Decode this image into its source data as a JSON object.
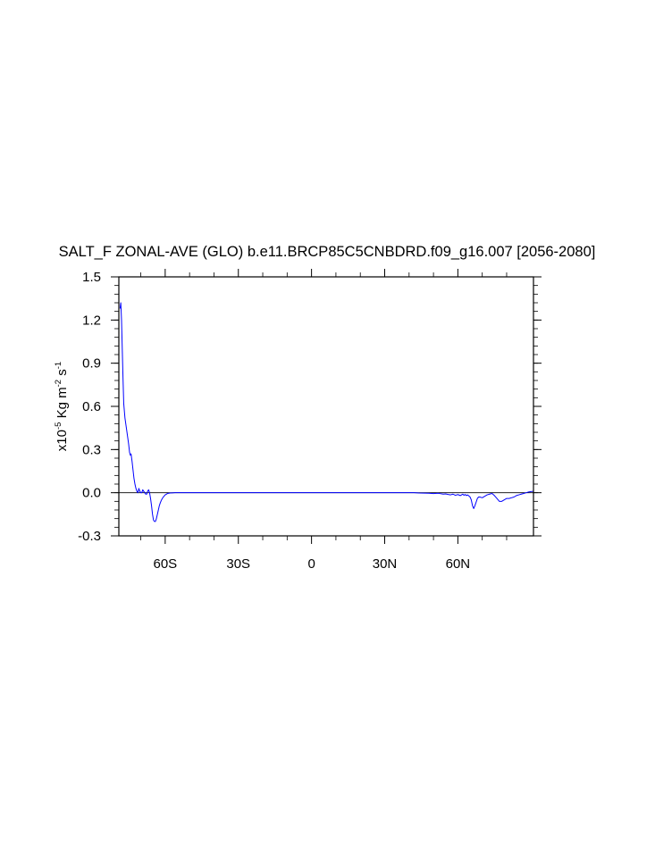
{
  "chart_data": {
    "type": "line",
    "title": "SALT_F ZONAL-AVE (GLO) b.e11.BRCP85C5CNBDRD.f09_g16.007 [2056-2080]",
    "ylabel": {
      "prefix": "x10",
      "exp": "-5",
      "unit1": " Kg m",
      "unit1_exp": "-2",
      "unit2": " s",
      "unit2_exp": "-1"
    },
    "xlim": [
      -79,
      91
    ],
    "ylim": [
      -0.3,
      1.5
    ],
    "x_ticks": [
      {
        "value": -60,
        "label": "60S"
      },
      {
        "value": -30,
        "label": "30S"
      },
      {
        "value": 0,
        "label": "0"
      },
      {
        "value": 30,
        "label": "30N"
      },
      {
        "value": 60,
        "label": "60N"
      }
    ],
    "y_ticks": [
      {
        "value": -0.3,
        "label": "-0.3"
      },
      {
        "value": 0.0,
        "label": "0.0"
      },
      {
        "value": 0.3,
        "label": "0.3"
      },
      {
        "value": 0.6,
        "label": "0.6"
      },
      {
        "value": 0.9,
        "label": "0.9"
      },
      {
        "value": 1.2,
        "label": "1.2"
      },
      {
        "value": 1.5,
        "label": "1.5"
      }
    ],
    "zero_line": true,
    "line_color": "#0000ff",
    "series": [
      {
        "x": [
          -78.5,
          -78.2,
          -77.9,
          -77.6,
          -77.3,
          -77.0,
          -76.5,
          -76.0,
          -75.5,
          -75.0,
          -74.6,
          -74.3,
          -74.0,
          -73.6,
          -73.2,
          -72.8,
          -72.4,
          -72.0,
          -71.6,
          -71.2,
          -70.8,
          -70.4,
          -70.0,
          -69.6,
          -69.2,
          -68.8,
          -68.4,
          -68.0,
          -67.6,
          -67.2,
          -66.8,
          -66.4,
          -66.0,
          -65.6,
          -65.2,
          -64.8,
          -64.4,
          -64.0,
          -63.6,
          -63.2,
          -62.8,
          -62.4,
          -62.0,
          -61.5,
          -61.0,
          -60.5,
          -60.0,
          -59.5,
          -59.0,
          -58.0,
          -57.0,
          -56.0,
          -55.0,
          -54.0,
          -53.0,
          -51.5,
          -50.0,
          -45.0,
          -30.0,
          0.0,
          30.0,
          42.0,
          44.0,
          46.0,
          48.0,
          50.0,
          52.0,
          54.0,
          55.0,
          56.0,
          57.0,
          58.0,
          59.0,
          60.0,
          61.0,
          62.0,
          62.5,
          63.0,
          63.5,
          64.0,
          64.5,
          65.0,
          65.5,
          66.0,
          66.5,
          67.0,
          68.0,
          68.5,
          69.0,
          70.0,
          71.0,
          72.0,
          73.0,
          74.0,
          75.0,
          76.0,
          77.0,
          78.0,
          79.0,
          80.0,
          81.0,
          82.0,
          83.0,
          84.0,
          85.0,
          86.0,
          87.0,
          88.0,
          89.0,
          90.0,
          91.0
        ],
        "y": [
          1.28,
          1.32,
          1.2,
          1.0,
          0.8,
          0.62,
          0.52,
          0.46,
          0.4,
          0.34,
          0.28,
          0.26,
          0.27,
          0.22,
          0.16,
          0.1,
          0.06,
          0.03,
          0.01,
          0.0,
          0.03,
          0.01,
          0.0,
          0.0,
          0.02,
          0.01,
          0.0,
          -0.01,
          -0.01,
          0.01,
          0.02,
          0.0,
          -0.04,
          -0.09,
          -0.15,
          -0.19,
          -0.2,
          -0.2,
          -0.18,
          -0.15,
          -0.12,
          -0.09,
          -0.07,
          -0.05,
          -0.035,
          -0.025,
          -0.015,
          -0.01,
          -0.005,
          -0.002,
          -0.001,
          0.0,
          0.0,
          0.0,
          0.0,
          0.0,
          0.0,
          0.0,
          0.0,
          0.0,
          0.0,
          0.0,
          -0.002,
          -0.003,
          -0.004,
          -0.006,
          -0.004,
          -0.01,
          -0.008,
          -0.012,
          -0.015,
          -0.01,
          -0.018,
          -0.013,
          -0.02,
          -0.01,
          -0.018,
          -0.012,
          -0.02,
          -0.015,
          -0.022,
          -0.03,
          -0.05,
          -0.09,
          -0.11,
          -0.09,
          -0.04,
          -0.03,
          -0.03,
          -0.035,
          -0.025,
          -0.015,
          -0.01,
          -0.005,
          -0.02,
          -0.04,
          -0.06,
          -0.06,
          -0.05,
          -0.04,
          -0.04,
          -0.035,
          -0.03,
          -0.02,
          -0.015,
          -0.01,
          -0.005,
          0.0,
          0.005,
          0.008,
          0.01
        ]
      }
    ]
  }
}
